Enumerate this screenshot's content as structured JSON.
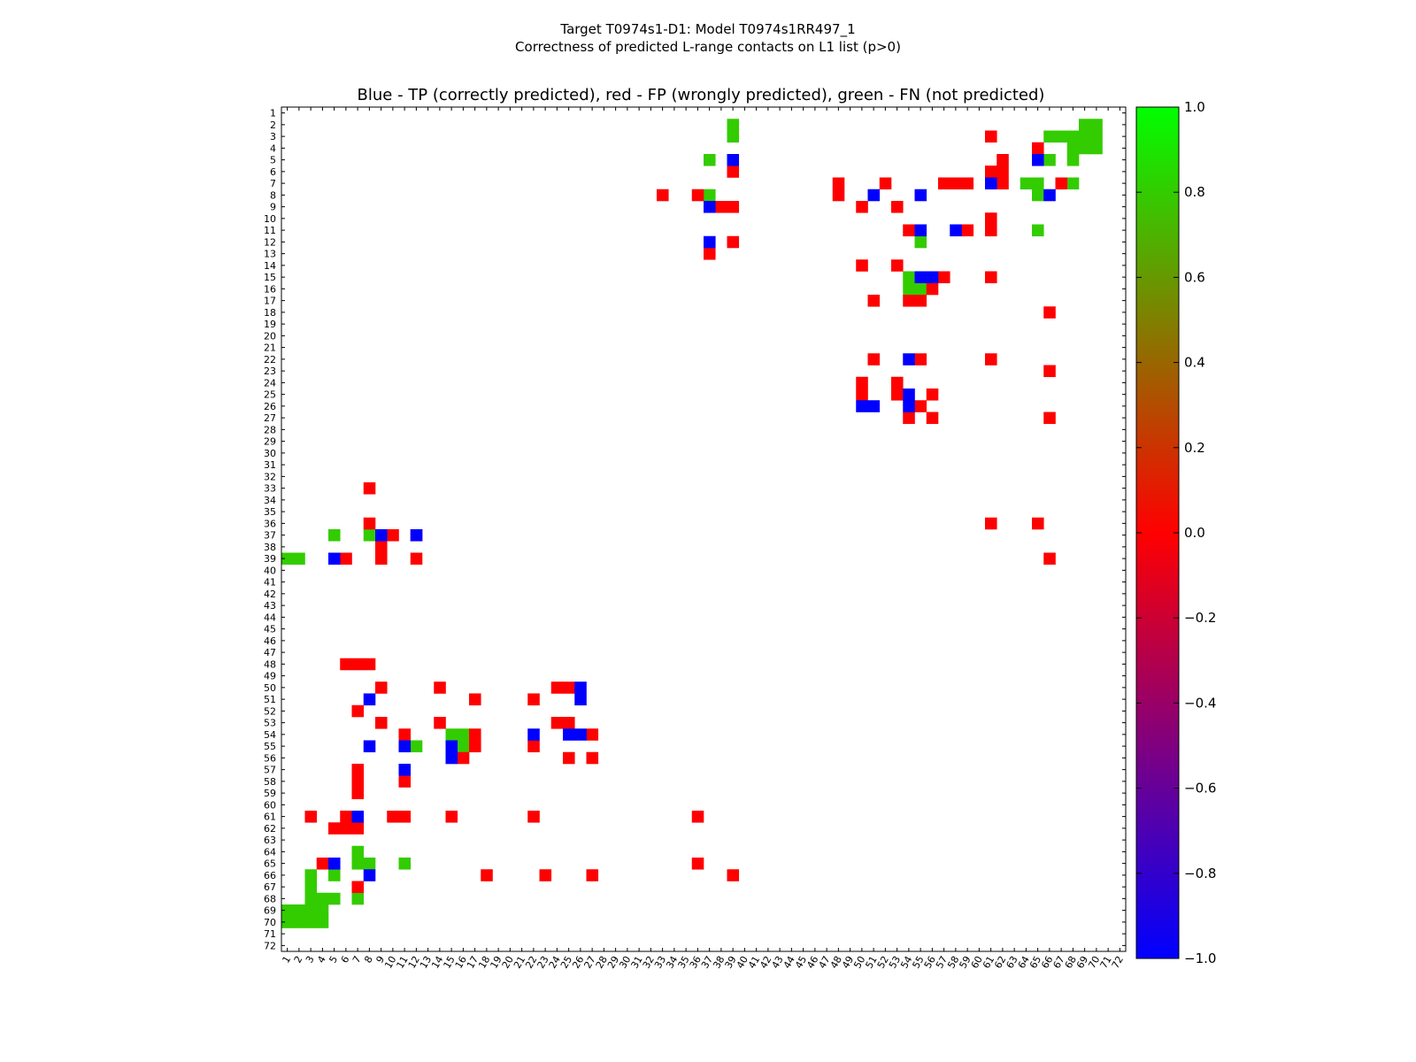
{
  "chart_data": {
    "type": "heatmap",
    "suptitle_line1": "Target T0974s1-D1: Model T0974s1RR497_1",
    "suptitle_line2": "Correctness of predicted L-range contacts on L1 list (p>0)",
    "title": "Blue - TP (correctly predicted), red - FP (wrongly predicted), green - FN (not predicted)",
    "xlabel": "",
    "ylabel": "",
    "n": 72,
    "x_tick_labels": [
      "1",
      "2",
      "3",
      "4",
      "5",
      "6",
      "7",
      "8",
      "9",
      "10",
      "11",
      "12",
      "13",
      "14",
      "15",
      "16",
      "17",
      "18",
      "19",
      "20",
      "21",
      "22",
      "23",
      "24",
      "25",
      "26",
      "27",
      "28",
      "29",
      "30",
      "31",
      "32",
      "33",
      "34",
      "35",
      "36",
      "37",
      "38",
      "39",
      "40",
      "41",
      "42",
      "43",
      "44",
      "45",
      "46",
      "47",
      "48",
      "49",
      "50",
      "51",
      "52",
      "53",
      "54",
      "55",
      "56",
      "57",
      "58",
      "59",
      "60",
      "61",
      "62",
      "63",
      "64",
      "65",
      "66",
      "67",
      "68",
      "69",
      "70",
      "71",
      "72"
    ],
    "y_tick_labels": [
      "1",
      "2",
      "3",
      "4",
      "5",
      "6",
      "7",
      "8",
      "9",
      "10",
      "11",
      "12",
      "13",
      "14",
      "15",
      "16",
      "17",
      "18",
      "19",
      "20",
      "21",
      "22",
      "23",
      "24",
      "25",
      "26",
      "27",
      "28",
      "29",
      "30",
      "31",
      "32",
      "33",
      "34",
      "35",
      "36",
      "37",
      "38",
      "39",
      "40",
      "41",
      "42",
      "43",
      "44",
      "45",
      "46",
      "47",
      "48",
      "49",
      "50",
      "51",
      "52",
      "53",
      "54",
      "55",
      "56",
      "57",
      "58",
      "59",
      "60",
      "61",
      "62",
      "63",
      "64",
      "65",
      "66",
      "67",
      "68",
      "69",
      "70",
      "71",
      "72"
    ],
    "colorbar": {
      "vmin": -1.0,
      "vmax": 1.0,
      "tick_values": [
        1.0,
        0.8,
        0.6,
        0.4,
        0.2,
        0.0,
        -0.2,
        -0.4,
        -0.6,
        -0.8,
        -1.0
      ],
      "tick_labels": [
        "1.0",
        "0.8",
        "0.6",
        "0.4",
        "0.2",
        "0.0",
        "−0.2",
        "−0.4",
        "−0.6",
        "−0.8",
        "−1.0"
      ],
      "colormap": [
        "#0000ff",
        "#ff0000",
        "#00ff00"
      ]
    },
    "legend": {
      "TP": "blue",
      "FP": "red",
      "FN": "green"
    },
    "cell_colors": {
      "tp": "#0000ff",
      "fp": "#ff0000",
      "fn": "#33cc00"
    },
    "tp_cells": [
      [
        5,
        39
      ],
      [
        7,
        61
      ],
      [
        8,
        51
      ],
      [
        8,
        55
      ],
      [
        8,
        66
      ],
      [
        9,
        37
      ],
      [
        11,
        55
      ],
      [
        11,
        58
      ],
      [
        12,
        37
      ],
      [
        15,
        55
      ],
      [
        15,
        56
      ],
      [
        22,
        54
      ],
      [
        26,
        50
      ],
      [
        26,
        51
      ],
      [
        26,
        54
      ],
      [
        25,
        54
      ],
      [
        5,
        65
      ],
      [
        39,
        5
      ],
      [
        37,
        9
      ],
      [
        37,
        12
      ],
      [
        51,
        8
      ],
      [
        50,
        26
      ],
      [
        51,
        26
      ],
      [
        54,
        22
      ],
      [
        54,
        25
      ],
      [
        54,
        26
      ],
      [
        55,
        8
      ],
      [
        55,
        11
      ],
      [
        55,
        15
      ],
      [
        56,
        15
      ],
      [
        57,
        11
      ],
      [
        61,
        7
      ],
      [
        65,
        5
      ],
      [
        66,
        8
      ]
    ],
    "fp_cells": [
      [
        6,
        39
      ],
      [
        6,
        61
      ],
      [
        6,
        62
      ],
      [
        7,
        48
      ],
      [
        7,
        52
      ],
      [
        7,
        57
      ],
      [
        7,
        58
      ],
      [
        7,
        59
      ],
      [
        7,
        62
      ],
      [
        7,
        67
      ],
      [
        8,
        33
      ],
      [
        8,
        36
      ],
      [
        8,
        48
      ],
      [
        9,
        38
      ],
      [
        9,
        39
      ],
      [
        9,
        50
      ],
      [
        9,
        53
      ],
      [
        10,
        61
      ],
      [
        11,
        54
      ],
      [
        11,
        59
      ],
      [
        11,
        61
      ],
      [
        12,
        39
      ],
      [
        13,
        37
      ],
      [
        14,
        50
      ],
      [
        14,
        53
      ],
      [
        15,
        57
      ],
      [
        15,
        61
      ],
      [
        16,
        56
      ],
      [
        17,
        51
      ],
      [
        17,
        54
      ],
      [
        17,
        55
      ],
      [
        18,
        66
      ],
      [
        22,
        51
      ],
      [
        22,
        55
      ],
      [
        22,
        61
      ],
      [
        23,
        66
      ],
      [
        24,
        50
      ],
      [
        24,
        53
      ],
      [
        25,
        50
      ],
      [
        25,
        53
      ],
      [
        25,
        56
      ],
      [
        26,
        55
      ],
      [
        27,
        54
      ],
      [
        27,
        56
      ],
      [
        27,
        66
      ],
      [
        3,
        61
      ],
      [
        4,
        65
      ],
      [
        5,
        62
      ],
      [
        6,
        61
      ],
      [
        33,
        8
      ],
      [
        36,
        8
      ],
      [
        36,
        61
      ],
      [
        36,
        65
      ],
      [
        37,
        12
      ],
      [
        38,
        9
      ],
      [
        39,
        6
      ],
      [
        39,
        9
      ],
      [
        39,
        12
      ],
      [
        39,
        66
      ],
      [
        48,
        6
      ],
      [
        48,
        7
      ],
      [
        48,
        8
      ],
      [
        50,
        9
      ],
      [
        50,
        14
      ],
      [
        50,
        24
      ],
      [
        50,
        25
      ],
      [
        51,
        17
      ],
      [
        51,
        22
      ],
      [
        52,
        7
      ],
      [
        53,
        9
      ],
      [
        53,
        14
      ],
      [
        53,
        24
      ],
      [
        53,
        25
      ],
      [
        54,
        11
      ],
      [
        54,
        17
      ],
      [
        54,
        27
      ],
      [
        55,
        17
      ],
      [
        55,
        22
      ],
      [
        56,
        16
      ],
      [
        56,
        25
      ],
      [
        56,
        27
      ],
      [
        58,
        7
      ],
      [
        58,
        11
      ],
      [
        57,
        7
      ],
      [
        59,
        7
      ],
      [
        61,
        3
      ],
      [
        61,
        6
      ],
      [
        61,
        10
      ],
      [
        61,
        11
      ],
      [
        61,
        15
      ],
      [
        61,
        22
      ],
      [
        61,
        36
      ],
      [
        62,
        5
      ],
      [
        62,
        6
      ],
      [
        62,
        7
      ],
      [
        65,
        4
      ],
      [
        65,
        36
      ],
      [
        66,
        18
      ],
      [
        66,
        23
      ],
      [
        66,
        27
      ],
      [
        66,
        39
      ],
      [
        67,
        7
      ],
      [
        37,
        10
      ]
    ],
    "fn_cells": [
      [
        2,
        39
      ],
      [
        3,
        39
      ],
      [
        2,
        69
      ],
      [
        2,
        70
      ],
      [
        3,
        66
      ],
      [
        3,
        67
      ],
      [
        3,
        68
      ],
      [
        3,
        69
      ],
      [
        3,
        70
      ],
      [
        4,
        68
      ],
      [
        4,
        69
      ],
      [
        4,
        70
      ],
      [
        5,
        37
      ],
      [
        5,
        66
      ],
      [
        5,
        68
      ],
      [
        7,
        64
      ],
      [
        7,
        65
      ],
      [
        7,
        68
      ],
      [
        8,
        37
      ],
      [
        8,
        65
      ],
      [
        11,
        65
      ],
      [
        12,
        55
      ],
      [
        15,
        54
      ],
      [
        16,
        54
      ],
      [
        16,
        55
      ],
      [
        37,
        5
      ],
      [
        37,
        8
      ],
      [
        39,
        1
      ],
      [
        39,
        2
      ],
      [
        54,
        15
      ],
      [
        54,
        16
      ],
      [
        55,
        12
      ],
      [
        55,
        16
      ],
      [
        64,
        7
      ],
      [
        65,
        7
      ],
      [
        65,
        8
      ],
      [
        65,
        11
      ],
      [
        66,
        3
      ],
      [
        66,
        5
      ],
      [
        67,
        3
      ],
      [
        68,
        3
      ],
      [
        68,
        4
      ],
      [
        68,
        5
      ],
      [
        68,
        7
      ],
      [
        69,
        1
      ],
      [
        69,
        2
      ],
      [
        69,
        3
      ],
      [
        69,
        4
      ],
      [
        70,
        1
      ],
      [
        70,
        2
      ],
      [
        70,
        3
      ],
      [
        70,
        4
      ]
    ]
  }
}
